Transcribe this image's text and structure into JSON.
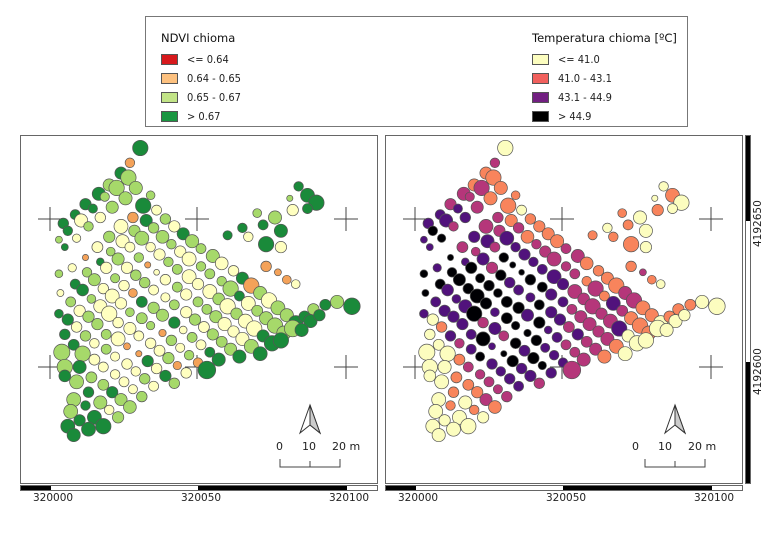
{
  "legend": {
    "ndvi": {
      "title": "NDVI chioma",
      "items": [
        {
          "label": "<= 0.64",
          "color": "#d7191c"
        },
        {
          "label": "0.64 - 0.65",
          "color": "#fdc17f"
        },
        {
          "label": "0.65 - 0.67",
          "color": "#c2e487"
        },
        {
          "label": "> 0.67",
          "color": "#1a9641"
        }
      ]
    },
    "temp": {
      "title": "Temperatura chioma [ºC]",
      "items": [
        {
          "label": "<= 41.0",
          "color": "#fcfdbf"
        },
        {
          "label": "41.0 - 43.1",
          "color": "#f1605d"
        },
        {
          "label": "43.1 - 44.9",
          "color": "#721f81"
        },
        {
          "label": "> 44.9",
          "color": "#000000"
        }
      ]
    }
  },
  "maps": {
    "left": {
      "name": "NDVI"
    },
    "right": {
      "name": "Temperatura"
    },
    "x_ticks": [
      "320000",
      "320050",
      "320100"
    ],
    "y_ticks": [
      "4192650",
      "4192600"
    ],
    "scale": {
      "labels": [
        "0",
        "10",
        "20 m"
      ]
    }
  },
  "symbol_colors": {
    "ndvi": {
      "g": "#1a8a3a",
      "l": "#a6d96a",
      "y": "#ffffc0",
      "o": "#f4a259"
    },
    "temp": {
      "y": "#fcfdbf",
      "o": "#f8845c",
      "m": "#b5367a",
      "p": "#51127c",
      "k": "#000004"
    }
  },
  "trees": [
    [
      30.5,
      74,
      3.5,
      "g",
      "y"
    ],
    [
      27,
      69,
      2.2,
      "o",
      "m"
    ],
    [
      24,
      65.5,
      2.8,
      "g",
      "o"
    ],
    [
      20,
      61.5,
      2.8,
      "l",
      "o"
    ],
    [
      16.5,
      58.5,
      3.0,
      "g",
      "m"
    ],
    [
      12,
      55,
      2.6,
      "g",
      "m"
    ],
    [
      8.5,
      51.5,
      2.3,
      "g",
      "p"
    ],
    [
      4.5,
      48.5,
      2.4,
      "g",
      "p"
    ],
    [
      26.5,
      64,
      3.5,
      "l",
      "o"
    ],
    [
      22.5,
      60.5,
      3.5,
      "l",
      "m"
    ],
    [
      18.5,
      57.5,
      2.1,
      "l",
      "m"
    ],
    [
      14.5,
      53.5,
      2.1,
      "g",
      "p"
    ],
    [
      10.5,
      49.5,
      3.0,
      "y",
      "p"
    ],
    [
      6,
      46,
      2.2,
      "g",
      "k"
    ],
    [
      3,
      43,
      1.6,
      "l",
      "p"
    ],
    [
      29,
      60.5,
      3.0,
      "l",
      "o"
    ],
    [
      25.5,
      57,
      3.0,
      "l",
      "o"
    ],
    [
      21,
      54,
      2.8,
      "l",
      "m"
    ],
    [
      17,
      50.5,
      2.4,
      "y",
      "p"
    ],
    [
      13,
      47.5,
      2.2,
      "l",
      "m"
    ],
    [
      9,
      43.5,
      1.9,
      "y",
      "k"
    ],
    [
      5,
      40.5,
      1.6,
      "g",
      "p"
    ],
    [
      34,
      58,
      2.0,
      "l",
      "o"
    ],
    [
      31.5,
      54.5,
      3.5,
      "g",
      "o"
    ],
    [
      28,
      50.5,
      2.4,
      "o",
      "m"
    ],
    [
      24,
      47.5,
      3.2,
      "y",
      "m"
    ],
    [
      20,
      44,
      2.6,
      "l",
      "p"
    ],
    [
      16,
      40.5,
      2.5,
      "y",
      "m"
    ],
    [
      12,
      37,
      1.4,
      "o",
      "k"
    ],
    [
      7.5,
      33.5,
      1.9,
      "y",
      "p"
    ],
    [
      3,
      31.5,
      1.8,
      "l",
      "k"
    ],
    [
      36,
      53,
      2.3,
      "y",
      "y"
    ],
    [
      32.5,
      49.5,
      2.8,
      "g",
      "o"
    ],
    [
      28.5,
      46,
      2.6,
      "l",
      "m"
    ],
    [
      24.5,
      42.5,
      3.0,
      "y",
      "p"
    ],
    [
      20.5,
      39,
      2.0,
      "l",
      "m"
    ],
    [
      17,
      35.5,
      1.8,
      "g",
      "p"
    ],
    [
      12.5,
      32,
      2.2,
      "l",
      "k"
    ],
    [
      8.5,
      28,
      2.3,
      "g",
      "k"
    ],
    [
      3.5,
      25,
      1.6,
      "y",
      "k"
    ],
    [
      39,
      50,
      2.4,
      "l",
      "o"
    ],
    [
      35,
      47,
      2.4,
      "l",
      "m"
    ],
    [
      31,
      43.5,
      3.2,
      "l",
      "p"
    ],
    [
      27,
      40.5,
      2.3,
      "y",
      "m"
    ],
    [
      23,
      36.5,
      2.8,
      "l",
      "p"
    ],
    [
      19,
      33.5,
      2.6,
      "y",
      "k"
    ],
    [
      15,
      29.5,
      2.8,
      "l",
      "k"
    ],
    [
      11,
      26,
      2.7,
      "g",
      "p"
    ],
    [
      7,
      22,
      2.3,
      "l",
      "p"
    ],
    [
      3,
      18,
      2.0,
      "g",
      "p"
    ],
    [
      42,
      47.5,
      2.6,
      "y",
      "o"
    ],
    [
      38,
      44,
      2.9,
      "l",
      "o"
    ],
    [
      34,
      40.5,
      2.2,
      "y",
      "p"
    ],
    [
      30,
      37,
      2.2,
      "l",
      "k"
    ],
    [
      26,
      33.5,
      2.6,
      "y",
      "m"
    ],
    [
      22,
      30,
      2.1,
      "l",
      "k"
    ],
    [
      18,
      26.5,
      2.4,
      "y",
      "k"
    ],
    [
      14,
      23,
      2.0,
      "l",
      "p"
    ],
    [
      10,
      19,
      2.6,
      "y",
      "p"
    ],
    [
      6,
      16,
      2.6,
      "g",
      "y"
    ],
    [
      45,
      45,
      2.8,
      "g",
      "o"
    ],
    [
      41,
      41.5,
      2.2,
      "l",
      "m"
    ],
    [
      37,
      38,
      2.6,
      "y",
      "p"
    ],
    [
      33,
      34.5,
      1.4,
      "o",
      "k"
    ],
    [
      29,
      31,
      2.4,
      "l",
      "k"
    ],
    [
      25,
      27.5,
      2.4,
      "y",
      "k"
    ],
    [
      21,
      24,
      3.2,
      "y",
      "k"
    ],
    [
      17,
      20.5,
      3.0,
      "y",
      "p"
    ],
    [
      13,
      17,
      2.6,
      "l",
      "p"
    ],
    [
      9,
      13.5,
      2.4,
      "y",
      "o"
    ],
    [
      5,
      11,
      2.4,
      "g",
      "y"
    ],
    [
      48,
      42.5,
      3.0,
      "l",
      "o"
    ],
    [
      44,
      39,
      2.6,
      "y",
      "m"
    ],
    [
      40,
      35.5,
      2.2,
      "l",
      "p"
    ],
    [
      36,
      32,
      1.3,
      "y",
      "k"
    ],
    [
      32,
      28.5,
      2.4,
      "l",
      "p"
    ],
    [
      28,
      25,
      2.0,
      "o",
      "k"
    ],
    [
      24,
      21.5,
      2.6,
      "y",
      "k"
    ],
    [
      20,
      18,
      3.5,
      "y",
      "k"
    ],
    [
      16,
      14.5,
      2.6,
      "l",
      "p"
    ],
    [
      12,
      10.5,
      2.4,
      "l",
      "p"
    ],
    [
      8,
      7.5,
      2.5,
      "g",
      "y"
    ],
    [
      4,
      5,
      3.7,
      "l",
      "y"
    ],
    [
      51,
      40,
      2.3,
      "l",
      "m"
    ],
    [
      47,
      36.5,
      3.2,
      "y",
      "m"
    ],
    [
      43,
      33,
      2.3,
      "l",
      "p"
    ],
    [
      39,
      29.5,
      2.4,
      "y",
      "k"
    ],
    [
      35,
      26,
      2.3,
      "y",
      "p"
    ],
    [
      31,
      22,
      2.5,
      "g",
      "k"
    ],
    [
      27,
      18.5,
      2.0,
      "l",
      "p"
    ],
    [
      23,
      15,
      2.4,
      "y",
      "m"
    ],
    [
      19,
      11,
      2.3,
      "l",
      "p"
    ],
    [
      15,
      8,
      2.2,
      "y",
      "m"
    ],
    [
      11,
      4.5,
      3.5,
      "l",
      "y"
    ],
    [
      55,
      37.5,
      3.0,
      "l",
      "m"
    ],
    [
      51,
      34,
      2.2,
      "l",
      "m"
    ],
    [
      47,
      30.5,
      3.2,
      "y",
      "p"
    ],
    [
      43,
      27,
      2.3,
      "l",
      "k"
    ],
    [
      39,
      23.5,
      2.1,
      "y",
      "p"
    ],
    [
      35,
      20,
      2.6,
      "l",
      "k"
    ],
    [
      31,
      16.5,
      2.5,
      "l",
      "k"
    ],
    [
      27,
      13,
      2.8,
      "y",
      "p"
    ],
    [
      23,
      9.5,
      3.2,
      "y",
      "k"
    ],
    [
      19,
      6,
      2.3,
      "l",
      "p"
    ],
    [
      15,
      2.5,
      2.5,
      "y",
      "o"
    ],
    [
      10,
      0,
      3.0,
      "g",
      "y"
    ],
    [
      5,
      0,
      3.5,
      "l",
      "y"
    ],
    [
      58,
      35,
      2.9,
      "y",
      "o"
    ],
    [
      54,
      31.5,
      2.3,
      "l",
      "m"
    ],
    [
      50,
      28,
      2.6,
      "y",
      "p"
    ],
    [
      46,
      24.5,
      2.6,
      "y",
      "p"
    ],
    [
      42,
      21,
      2.3,
      "l",
      "k"
    ],
    [
      38,
      17.5,
      2.8,
      "l",
      "p"
    ],
    [
      34,
      14,
      1.9,
      "l",
      "k"
    ],
    [
      30,
      10.5,
      2.3,
      "y",
      "m"
    ],
    [
      26,
      7,
      1.6,
      "o",
      "p"
    ],
    [
      22,
      3.5,
      2.1,
      "y",
      "k"
    ],
    [
      18,
      0,
      2.3,
      "y",
      "m"
    ],
    [
      14,
      -3.5,
      2.5,
      "l",
      "o"
    ],
    [
      9,
      -5,
      3.2,
      "l",
      "y"
    ],
    [
      5,
      -3,
      2.7,
      "g",
      "y"
    ],
    [
      62,
      32.5,
      2.4,
      "y",
      "o"
    ],
    [
      58,
      29,
      2.2,
      "l",
      "o"
    ],
    [
      54,
      25.5,
      3.2,
      "y",
      "m"
    ],
    [
      50,
      22,
      2.3,
      "l",
      "p"
    ],
    [
      46,
      18.5,
      2.6,
      "y",
      "p"
    ],
    [
      42,
      15,
      2.6,
      "g",
      "k"
    ],
    [
      38,
      11.5,
      1.7,
      "o",
      "k"
    ],
    [
      34,
      8,
      2.4,
      "y",
      "k"
    ],
    [
      30,
      4.5,
      1.4,
      "o",
      "k"
    ],
    [
      26,
      1,
      2.4,
      "y",
      "p"
    ],
    [
      22,
      -2.5,
      2.2,
      "y",
      "m"
    ],
    [
      18,
      -6,
      2.5,
      "l",
      "o"
    ],
    [
      13,
      -8.5,
      2.4,
      "g",
      "o"
    ],
    [
      8,
      -11,
      3.2,
      "l",
      "y"
    ],
    [
      65,
      30,
      2.8,
      "g",
      "o"
    ],
    [
      61,
      26.5,
      3.5,
      "l",
      "m"
    ],
    [
      57,
      23,
      2.7,
      "l",
      "m"
    ],
    [
      53,
      19.5,
      2.3,
      "l",
      "m"
    ],
    [
      49,
      16,
      2.6,
      "l",
      "p"
    ],
    [
      45,
      12.5,
      1.8,
      "y",
      "p"
    ],
    [
      41,
      9,
      2.4,
      "l",
      "k"
    ],
    [
      37,
      5.5,
      2.5,
      "y",
      "p"
    ],
    [
      33,
      2,
      2.6,
      "g",
      "k"
    ],
    [
      29,
      -1.5,
      2.2,
      "y",
      "p"
    ],
    [
      25,
      -5,
      2.3,
      "y",
      "m"
    ],
    [
      21,
      -8.5,
      2.6,
      "g",
      "o"
    ],
    [
      17,
      -12,
      3.0,
      "l",
      "y"
    ],
    [
      12,
      -13,
      2.2,
      "g",
      "o"
    ],
    [
      7,
      -15,
      3.2,
      "l",
      "y"
    ],
    [
      68,
      27.5,
      3.5,
      "o",
      "o"
    ],
    [
      64,
      24,
      2.3,
      "g",
      "o"
    ],
    [
      60,
      20.5,
      3.5,
      "y",
      "m"
    ],
    [
      56,
      17,
      2.8,
      "l",
      "m"
    ],
    [
      52,
      13.5,
      2.5,
      "y",
      "m"
    ],
    [
      48,
      10,
      2.3,
      "l",
      "p"
    ],
    [
      44,
      6.5,
      2.1,
      "y",
      "p"
    ],
    [
      40,
      3,
      2.6,
      "l",
      "k"
    ],
    [
      36,
      -0.5,
      2.4,
      "y",
      "p"
    ],
    [
      32,
      -4,
      2.4,
      "l",
      "p"
    ],
    [
      28,
      -7.5,
      2.1,
      "y",
      "m"
    ],
    [
      24,
      -11,
      2.8,
      "l",
      "m"
    ],
    [
      20,
      -14.5,
      2.2,
      "y",
      "o"
    ],
    [
      15,
      -17,
      3.2,
      "g",
      "y"
    ],
    [
      10,
      -18,
      2.6,
      "g",
      "y"
    ],
    [
      6,
      -20,
      3.2,
      "g",
      "y"
    ],
    [
      71,
      25,
      3.0,
      "l",
      "m"
    ],
    [
      67,
      21.5,
      3.2,
      "y",
      "p"
    ],
    [
      63,
      18,
      2.6,
      "l",
      "m"
    ],
    [
      59,
      14.5,
      3.0,
      "y",
      "m"
    ],
    [
      55,
      11,
      2.6,
      "l",
      "p"
    ],
    [
      51,
      7.5,
      2.3,
      "y",
      "m"
    ],
    [
      47,
      4,
      2.2,
      "l",
      "p"
    ],
    [
      43,
      0.5,
      1.9,
      "o",
      "k"
    ],
    [
      39,
      -3,
      2.6,
      "g",
      "p"
    ],
    [
      35,
      -6.5,
      2.3,
      "y",
      "p"
    ],
    [
      31,
      -10,
      2.4,
      "l",
      "m"
    ],
    [
      27,
      -13.5,
      2.9,
      "l",
      "o"
    ],
    [
      23,
      -17,
      2.6,
      "l",
      "y"
    ],
    [
      18,
      -20,
      3.5,
      "g",
      "y"
    ],
    [
      13,
      -21,
      3.2,
      "g",
      "y"
    ],
    [
      8,
      -23,
      3.0,
      "g",
      "y"
    ],
    [
      74,
      22.5,
      3.5,
      "y",
      "m"
    ],
    [
      70,
      19,
      2.5,
      "l",
      "m"
    ],
    [
      66,
      15.5,
      3.2,
      "y",
      "m"
    ],
    [
      62,
      12,
      2.6,
      "y",
      "m"
    ],
    [
      58,
      8.5,
      2.5,
      "l",
      "m"
    ],
    [
      54,
      5,
      2.3,
      "g",
      "m"
    ],
    [
      50,
      1.5,
      2.2,
      "o",
      "p"
    ],
    [
      46,
      -2,
      2.4,
      "y",
      "p"
    ],
    [
      42,
      -5.5,
      2.4,
      "l",
      "m"
    ],
    [
      77,
      20,
      3.2,
      "l",
      "o"
    ],
    [
      73,
      16.5,
      3.0,
      "l",
      "o"
    ],
    [
      69,
      13,
      3.5,
      "y",
      "p"
    ],
    [
      65,
      9.5,
      3.0,
      "y",
      "m"
    ],
    [
      61,
      6,
      2.8,
      "l",
      "m"
    ],
    [
      57,
      2.5,
      3.0,
      "g",
      "m"
    ],
    [
      53,
      -1,
      4.0,
      "g",
      "m"
    ],
    [
      80,
      17.5,
      3.0,
      "l",
      "o"
    ],
    [
      76,
      14,
      3.5,
      "l",
      "o"
    ],
    [
      72,
      10.5,
      2.8,
      "g",
      "y"
    ],
    [
      68,
      7,
      3.2,
      "l",
      "o"
    ],
    [
      64,
      3.5,
      3.0,
      "g",
      "o"
    ],
    [
      83,
      15,
      3.2,
      "g",
      "y"
    ],
    [
      79,
      11.5,
      3.2,
      "l",
      "o"
    ],
    [
      75,
      8,
      3.5,
      "g",
      "y"
    ],
    [
      71,
      4.5,
      3.2,
      "g",
      "y"
    ],
    [
      86,
      17,
      2.6,
      "g",
      "o"
    ],
    [
      82,
      13,
      3.8,
      "l",
      "y"
    ],
    [
      78,
      9,
      3.5,
      "g",
      "y"
    ],
    [
      89,
      19.5,
      2.6,
      "l",
      "o"
    ],
    [
      88,
      15.5,
      3.0,
      "g",
      "y"
    ],
    [
      85,
      12.5,
      3.0,
      "g",
      "y"
    ],
    [
      93,
      21,
      2.5,
      "g",
      "o"
    ],
    [
      91,
      17.5,
      2.6,
      "g",
      "y"
    ],
    [
      97,
      22,
      3.0,
      "l",
      "y"
    ],
    [
      102,
      20.5,
      3.8,
      "g",
      "y"
    ],
    [
      73,
      34,
      2.4,
      "o",
      "o"
    ],
    [
      77,
      32,
      1.6,
      "o",
      "m"
    ],
    [
      80,
      29.5,
      2.0,
      "o",
      "o"
    ],
    [
      83,
      28,
      2.0,
      "y",
      "y"
    ],
    [
      84,
      61,
      2.2,
      "g",
      "y"
    ],
    [
      87,
      58,
      3.2,
      "g",
      "o"
    ],
    [
      90,
      55.5,
      3.5,
      "g",
      "y"
    ],
    [
      87,
      53.5,
      2.3,
      "g",
      "y"
    ],
    [
      81,
      57,
      1.4,
      "l",
      "y"
    ],
    [
      82,
      53,
      2.6,
      "y",
      "o"
    ],
    [
      70,
      52,
      2.0,
      "l",
      "o"
    ],
    [
      76,
      50.5,
      3.0,
      "l",
      "y"
    ],
    [
      72,
      48,
      2.3,
      "g",
      "o"
    ],
    [
      78,
      46,
      3.0,
      "g",
      "y"
    ],
    [
      65,
      47,
      2.2,
      "g",
      "y"
    ],
    [
      60,
      44.5,
      2.1,
      "g",
      "o"
    ],
    [
      67,
      44,
      2.2,
      "y",
      "o"
    ],
    [
      73,
      41.5,
      3.5,
      "g",
      "o"
    ],
    [
      78,
      40.5,
      2.6,
      "y",
      "y"
    ]
  ]
}
